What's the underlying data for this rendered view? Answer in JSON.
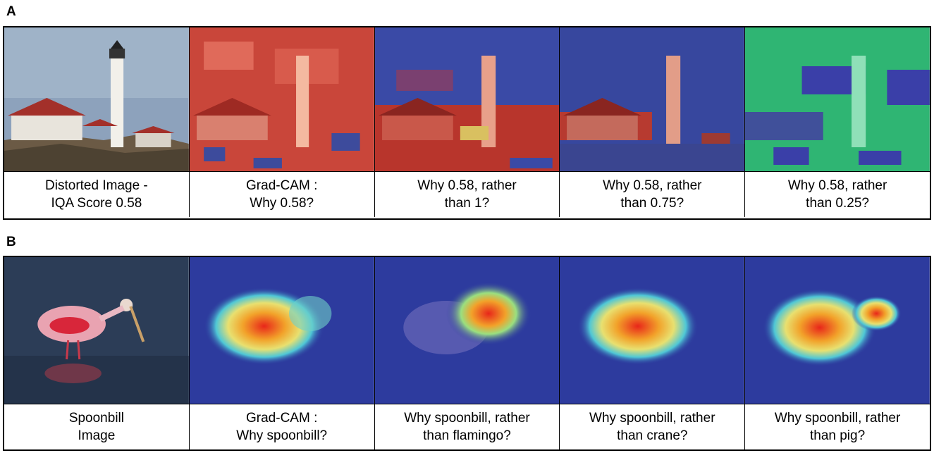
{
  "panels": [
    {
      "letter": "A",
      "captions": [
        "Distorted Image -\nIQA Score 0.58",
        "Grad-CAM :\nWhy 0.58?",
        "Why 0.58, rather\nthan 1?",
        "Why 0.58, rather\nthan 0.75?",
        "Why 0.58, rather\nthan 0.25?"
      ],
      "images": [
        "lighthouse-photo",
        "lighthouse-gradcam",
        "lighthouse-contrast-1",
        "lighthouse-contrast-0.75",
        "lighthouse-contrast-0.25"
      ]
    },
    {
      "letter": "B",
      "captions": [
        "Spoonbill\nImage",
        "Grad-CAM :\nWhy spoonbill?",
        "Why spoonbill, rather\nthan flamingo?",
        "Why spoonbill, rather\nthan crane?",
        "Why spoonbill, rather\nthan pig?"
      ],
      "images": [
        "spoonbill-photo",
        "spoonbill-gradcam",
        "spoonbill-contrast-flamingo",
        "spoonbill-contrast-crane",
        "spoonbill-contrast-pig"
      ]
    }
  ],
  "colors": {
    "heat_red": "#d42a1e",
    "heat_blue": "#2b3aa8",
    "heat_green": "#2ec47a",
    "water": "#27374f"
  }
}
